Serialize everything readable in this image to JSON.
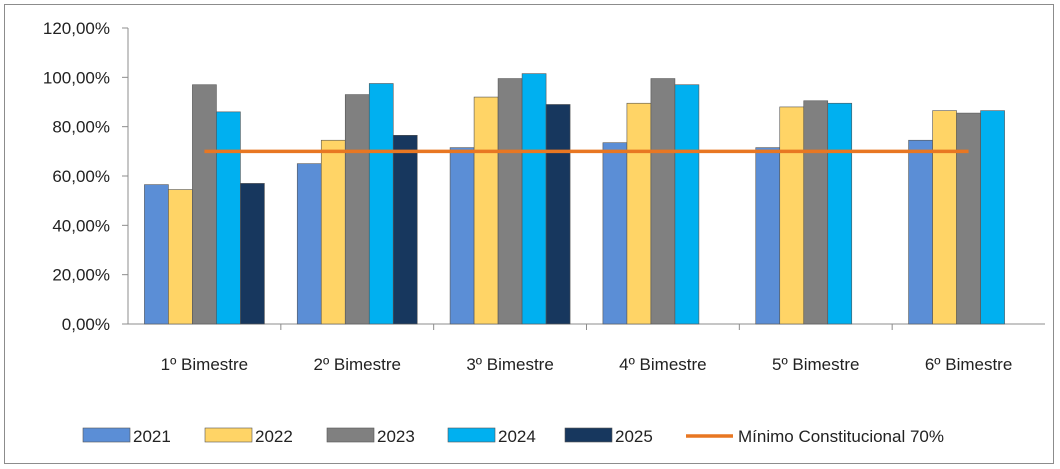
{
  "chart_data": {
    "type": "bar",
    "categories": [
      "1º Bimestre",
      "2º Bimestre",
      "3º Bimestre",
      "4º Bimestre",
      "5º Bimestre",
      "6º Bimestre"
    ],
    "series": [
      {
        "name": "2021",
        "color": "#5b8ed6",
        "values": [
          56.5,
          65.0,
          71.5,
          73.5,
          71.5,
          74.5
        ]
      },
      {
        "name": "2022",
        "color": "#ffd466",
        "values": [
          54.5,
          74.5,
          92.0,
          89.5,
          88.0,
          86.5
        ]
      },
      {
        "name": "2023",
        "color": "#808080",
        "values": [
          97.0,
          93.0,
          99.5,
          99.5,
          90.5,
          85.5
        ]
      },
      {
        "name": "2024",
        "color": "#00b0f0",
        "values": [
          86.0,
          97.5,
          101.5,
          97.0,
          89.5,
          86.5
        ]
      },
      {
        "name": "2025",
        "color": "#17375e",
        "values": [
          57.0,
          76.5,
          89.0,
          null,
          null,
          null
        ]
      }
    ],
    "reference_line": {
      "name": "Mínimo Constitucional 70%",
      "value": 70,
      "color": "#e87722"
    },
    "y_ticks": [
      "0,00%",
      "20,00%",
      "40,00%",
      "60,00%",
      "80,00%",
      "100,00%",
      "120,00%"
    ],
    "ylim": [
      0,
      120
    ],
    "grid": false,
    "legend": "bottom"
  }
}
